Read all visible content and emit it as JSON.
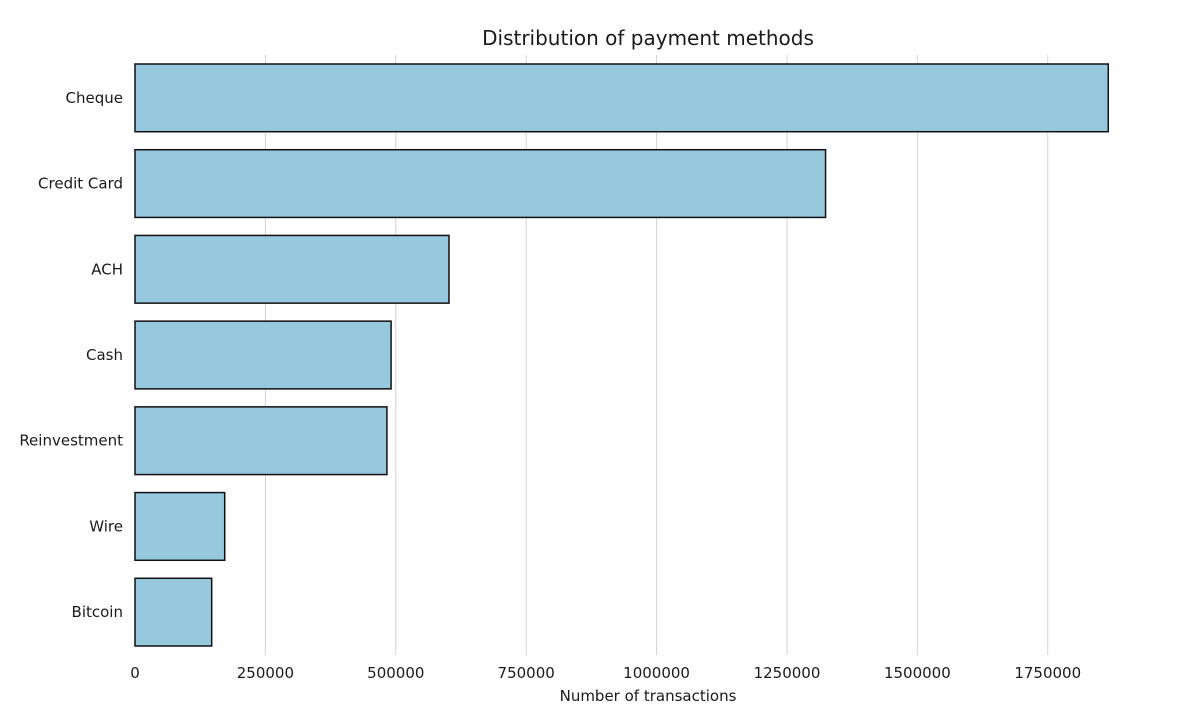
{
  "chart_data": {
    "type": "bar",
    "orientation": "horizontal",
    "title": "Distribution of payment methods",
    "xlabel": "Number of transactions",
    "ylabel": "",
    "categories": [
      "Cheque",
      "Credit Card",
      "ACH",
      "Cash",
      "Reinvestment",
      "Wire",
      "Bitcoin"
    ],
    "values": [
      1866000,
      1324000,
      602000,
      491000,
      483000,
      172000,
      147000
    ],
    "xlim": [
      0,
      1900000
    ],
    "xticks": [
      0,
      250000,
      500000,
      750000,
      1000000,
      1250000,
      1500000,
      1750000
    ],
    "xtick_labels": [
      "0",
      "250000",
      "500000",
      "750000",
      "1000000",
      "1250000",
      "1500000",
      "1750000"
    ],
    "grid": "vertical",
    "legend": "none",
    "bar_color": "#96c8de",
    "bar_edge_color": "#111111",
    "grid_color": "#d4d4d4"
  }
}
